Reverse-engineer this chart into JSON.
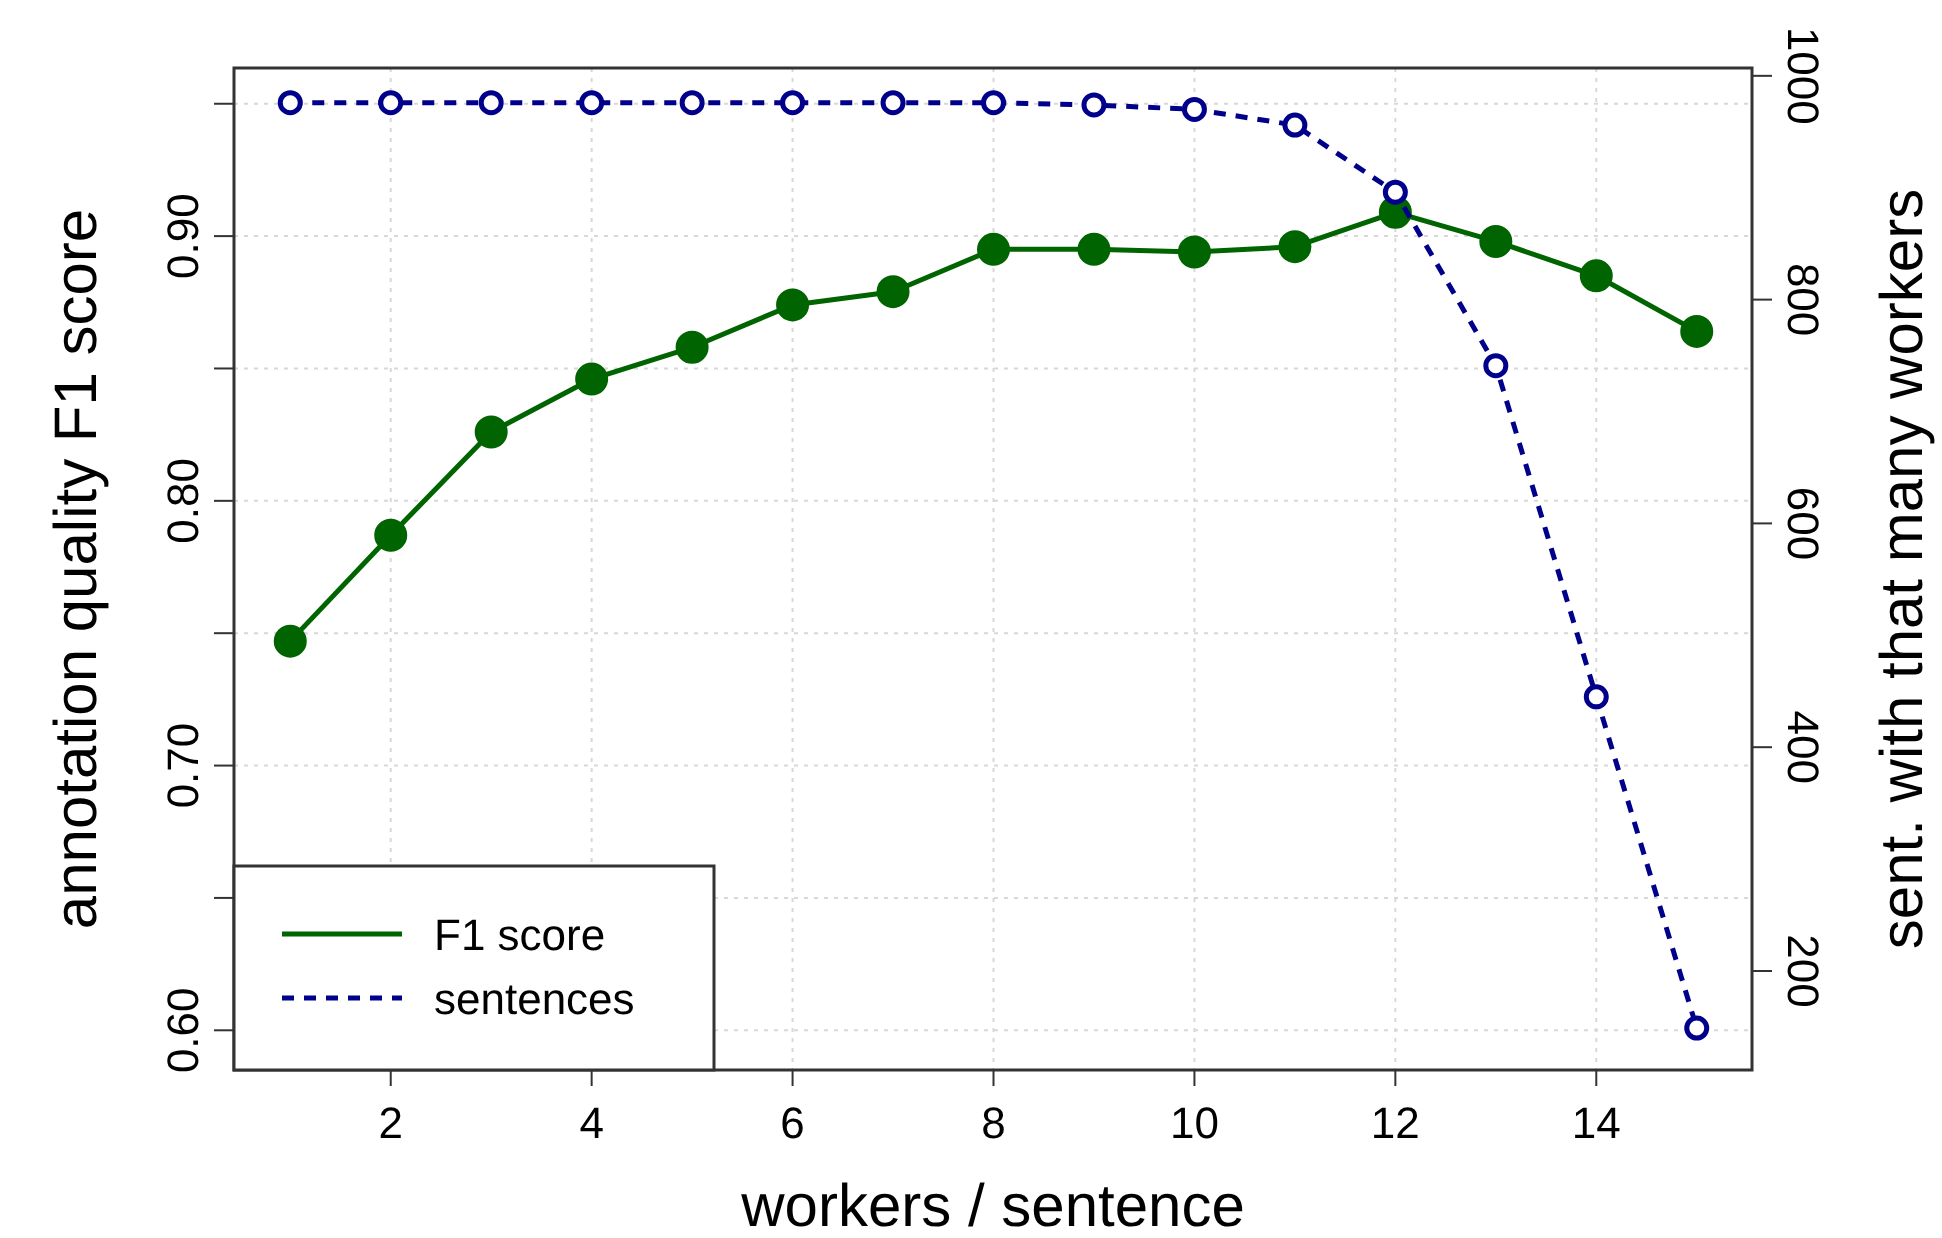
{
  "chart_data": {
    "type": "line",
    "xlabel": "workers / sentence",
    "ylabel": "annotation quality F1 score",
    "y2label": "sent. with that many workers",
    "x": [
      1,
      2,
      3,
      4,
      5,
      6,
      7,
      8,
      9,
      10,
      11,
      12,
      13,
      14,
      15
    ],
    "series": [
      {
        "name": "F1 score",
        "color": "#006400",
        "values": [
          0.747,
          0.787,
          0.826,
          0.846,
          0.858,
          0.874,
          0.879,
          0.895,
          0.895,
          0.894,
          0.896,
          0.909,
          0.898,
          0.885,
          0.864
        ],
        "line_style": "solid",
        "marker": "circle"
      },
      {
        "name": "sentences",
        "color": "#00008b",
        "axis": "y2",
        "values": [
          976,
          976,
          976,
          976,
          976,
          976,
          976,
          976,
          974,
          970,
          956,
          896,
          741,
          445,
          149
        ],
        "line_style": "dashed",
        "marker": "circle"
      }
    ],
    "xlim": [
      0.44,
      15.55
    ],
    "xticks": [
      2,
      4,
      6,
      8,
      10,
      12,
      14
    ],
    "ylim": [
      0.585,
      0.9635
    ],
    "yticks": [
      {
        "value": 0.6,
        "label": "0.60"
      },
      {
        "value": 0.65,
        "label": null
      },
      {
        "value": 0.7,
        "label": "0.70"
      },
      {
        "value": 0.75,
        "label": null
      },
      {
        "value": 0.8,
        "label": "0.80"
      },
      {
        "value": 0.85,
        "label": null
      },
      {
        "value": 0.9,
        "label": "0.90"
      },
      {
        "value": 0.95,
        "label": null
      }
    ],
    "y2lim": [
      111.5,
      1007
    ],
    "y2ticks": [
      200,
      400,
      600,
      800,
      1000
    ],
    "grid": true,
    "legend": "bottom left"
  }
}
